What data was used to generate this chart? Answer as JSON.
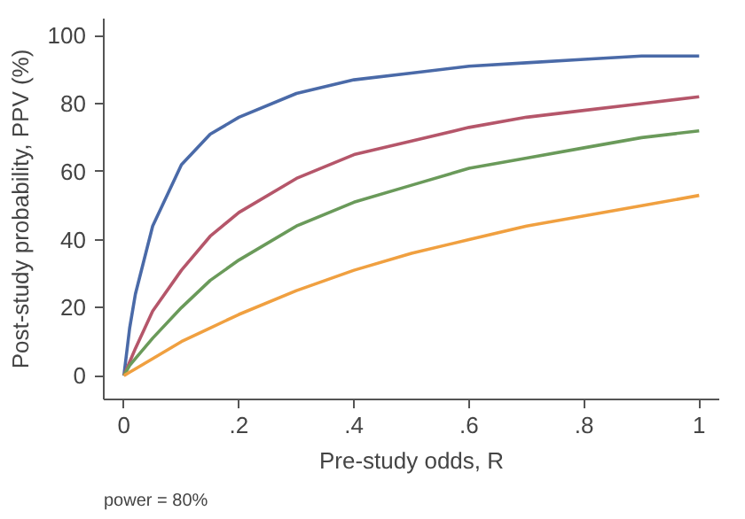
{
  "chart_data": {
    "type": "line",
    "xlabel": "Pre-study odds, R",
    "ylabel": "Post-study probability, PPV (%)",
    "annotations": [
      "power = 80%"
    ],
    "x": [
      0,
      0.01,
      0.02,
      0.05,
      0.1,
      0.15,
      0.2,
      0.3,
      0.4,
      0.5,
      0.6,
      0.7,
      0.8,
      0.9,
      1
    ],
    "series": [
      {
        "color": "#4a6aa8",
        "values": [
          0,
          14,
          24,
          44,
          62,
          71,
          76,
          83,
          87,
          89,
          91,
          92,
          93,
          94,
          94
        ]
      },
      {
        "color": "#b5566a",
        "values": [
          0,
          4,
          8,
          19,
          31,
          41,
          48,
          58,
          65,
          69,
          73,
          76,
          78,
          80,
          82
        ]
      },
      {
        "color": "#6a9a5a",
        "values": [
          0,
          3,
          5,
          11,
          20,
          28,
          34,
          44,
          51,
          56,
          61,
          64,
          67,
          70,
          72
        ]
      },
      {
        "color": "#f0a040",
        "values": [
          0,
          1,
          2,
          5,
          10,
          14,
          18,
          25,
          31,
          36,
          40,
          44,
          47,
          50,
          53
        ]
      }
    ],
    "xlim": [
      -0.035,
      1.035
    ],
    "ylim": [
      -7,
      105
    ],
    "xticks": [
      0,
      {
        "value": 0.2,
        "label": ".2"
      },
      {
        "value": 0.4,
        "label": ".4"
      },
      {
        "value": 0.6,
        "label": ".6"
      },
      {
        "value": 0.8,
        "label": ".8"
      },
      1
    ],
    "yticks": [
      0,
      20,
      40,
      60,
      80,
      100
    ],
    "grid": false,
    "marker": "none",
    "line_style": "solid"
  }
}
